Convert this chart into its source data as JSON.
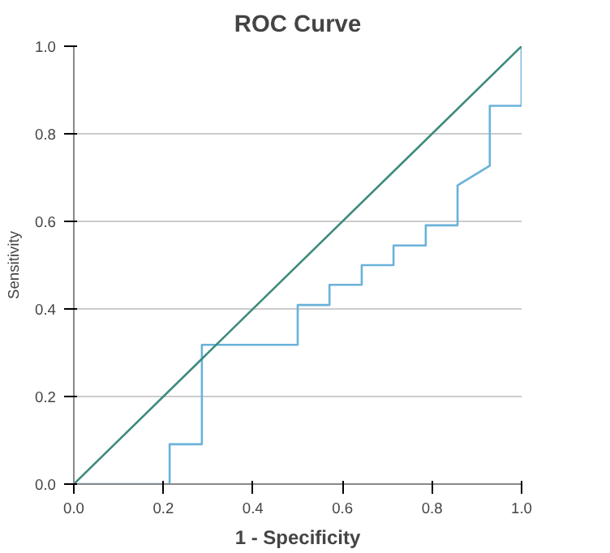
{
  "chart_data": {
    "type": "line",
    "title": "ROC Curve",
    "xlabel": "1 - Specificity",
    "ylabel": "Sensitivity",
    "xlim": [
      0,
      1
    ],
    "ylim": [
      0,
      1
    ],
    "xticks": [
      {
        "value": 0,
        "label": "0.0"
      },
      {
        "value": 0.2,
        "label": "0.2"
      },
      {
        "value": 0.4,
        "label": "0.4"
      },
      {
        "value": 0.6,
        "label": "0.6"
      },
      {
        "value": 0.8,
        "label": "0.8"
      },
      {
        "value": 1,
        "label": "1.0"
      }
    ],
    "yticks": [
      {
        "value": 0,
        "label": "0.0"
      },
      {
        "value": 0.2,
        "label": "0.2"
      },
      {
        "value": 0.4,
        "label": "0.4"
      },
      {
        "value": 0.6,
        "label": "0.6"
      },
      {
        "value": 0.8,
        "label": "0.8"
      },
      {
        "value": 1,
        "label": "1.0"
      }
    ],
    "grid": "y",
    "series": [
      {
        "color": "#6ab2d9",
        "x": [
          0,
          0.214,
          0.214,
          0.286,
          0.286,
          0.5,
          0.5,
          0.571,
          0.571,
          0.643,
          0.643,
          0.714,
          0.714,
          0.786,
          0.786,
          0.857,
          0.857,
          0.929,
          0.929,
          1,
          1
        ],
        "values": [
          0,
          0,
          0.091,
          0.091,
          0.318,
          0.318,
          0.409,
          0.409,
          0.455,
          0.455,
          0.5,
          0.5,
          0.545,
          0.545,
          0.591,
          0.591,
          0.682,
          0.727,
          0.864,
          0.864,
          1
        ]
      },
      {
        "color": "#3d8a7c",
        "x": [
          0,
          1
        ],
        "values": [
          0,
          1
        ]
      }
    ]
  }
}
